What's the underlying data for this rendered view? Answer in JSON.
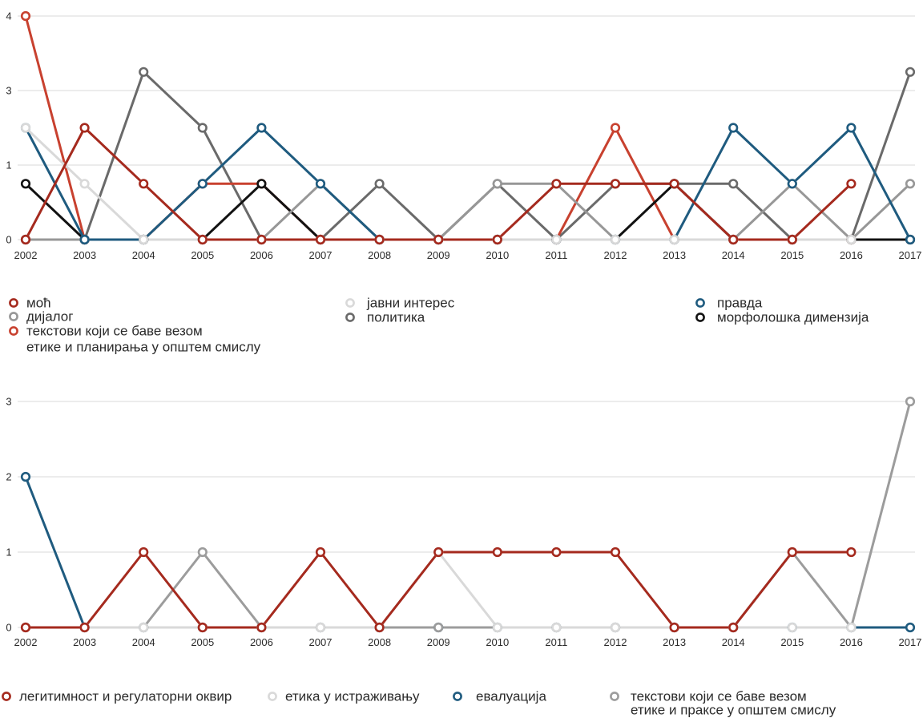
{
  "chart_data": [
    {
      "type": "line",
      "x": [
        2002,
        2003,
        2004,
        2005,
        2006,
        2007,
        2008,
        2009,
        2010,
        2011,
        2012,
        2013,
        2014,
        2015,
        2016,
        2017
      ],
      "ylim": [
        0,
        4
      ],
      "y_tick_labels": [
        "4",
        "3",
        "1",
        "0"
      ],
      "grid": true,
      "legend": "below",
      "series": [
        {
          "name": "моћ",
          "color": "#a52a1e",
          "values": [
            0,
            2,
            1,
            0,
            0,
            0,
            0,
            0,
            0,
            1,
            1,
            1,
            0,
            0,
            1,
            null
          ]
        },
        {
          "name": "дијалог",
          "color": "#979797",
          "values": [
            0,
            0,
            0,
            0,
            0,
            1,
            0,
            0,
            1,
            1,
            0,
            0,
            0,
            1,
            0,
            1
          ]
        },
        {
          "name": "текстови који се баве везом етике и планирања у општем смислу",
          "color": "#c8412f",
          "values": [
            4,
            0,
            0,
            1,
            1,
            0,
            0,
            0,
            0,
            0,
            2,
            0,
            0,
            0,
            0,
            null
          ]
        },
        {
          "name": "јавни интерес",
          "color": "#d9d9d9",
          "values": [
            2,
            1,
            0,
            0,
            0,
            0,
            0,
            0,
            0,
            0,
            0,
            0,
            0,
            0,
            0,
            null
          ]
        },
        {
          "name": "политика",
          "color": "#6a6a6a",
          "values": [
            0,
            0,
            3,
            2,
            0,
            0,
            1,
            0,
            1,
            0,
            1,
            1,
            1,
            0,
            0,
            3
          ]
        },
        {
          "name": "правда",
          "color": "#1f5b7f",
          "values": [
            2,
            0,
            0,
            1,
            2,
            1,
            0,
            0,
            0,
            0,
            0,
            0,
            2,
            1,
            2,
            0
          ]
        },
        {
          "name": "морфолошка димензија",
          "color": "#121212",
          "values": [
            1,
            0,
            0,
            0,
            1,
            0,
            0,
            0,
            0,
            0,
            0,
            1,
            0,
            0,
            0,
            0
          ]
        }
      ]
    },
    {
      "type": "line",
      "x": [
        2002,
        2003,
        2004,
        2005,
        2006,
        2007,
        2008,
        2009,
        2010,
        2011,
        2012,
        2013,
        2014,
        2015,
        2016,
        2017
      ],
      "ylim": [
        0,
        3
      ],
      "y_tick_labels": [
        "3",
        "2",
        "1",
        "0"
      ],
      "grid": true,
      "legend": "below",
      "series": [
        {
          "name": "легитимност и регулаторни оквир",
          "color": "#a52a1e",
          "values": [
            0,
            0,
            1,
            0,
            0,
            1,
            0,
            1,
            1,
            1,
            1,
            0,
            0,
            1,
            1,
            null
          ]
        },
        {
          "name": "етика у истраживању",
          "color": "#d9d9d9",
          "values": [
            0,
            0,
            0,
            0,
            0,
            0,
            0,
            1,
            0,
            0,
            0,
            0,
            0,
            0,
            0,
            null
          ]
        },
        {
          "name": "евалуација",
          "color": "#1f5b7f",
          "values": [
            2,
            0,
            0,
            0,
            0,
            0,
            0,
            0,
            0,
            0,
            0,
            0,
            0,
            0,
            0,
            0
          ]
        },
        {
          "name": "текстови који се баве везом етике и праксе у општем смислу",
          "color": "#9c9c9c",
          "values": [
            0,
            0,
            0,
            1,
            0,
            0,
            0,
            0,
            0,
            0,
            0,
            0,
            0,
            1,
            0,
            3
          ]
        }
      ]
    }
  ]
}
